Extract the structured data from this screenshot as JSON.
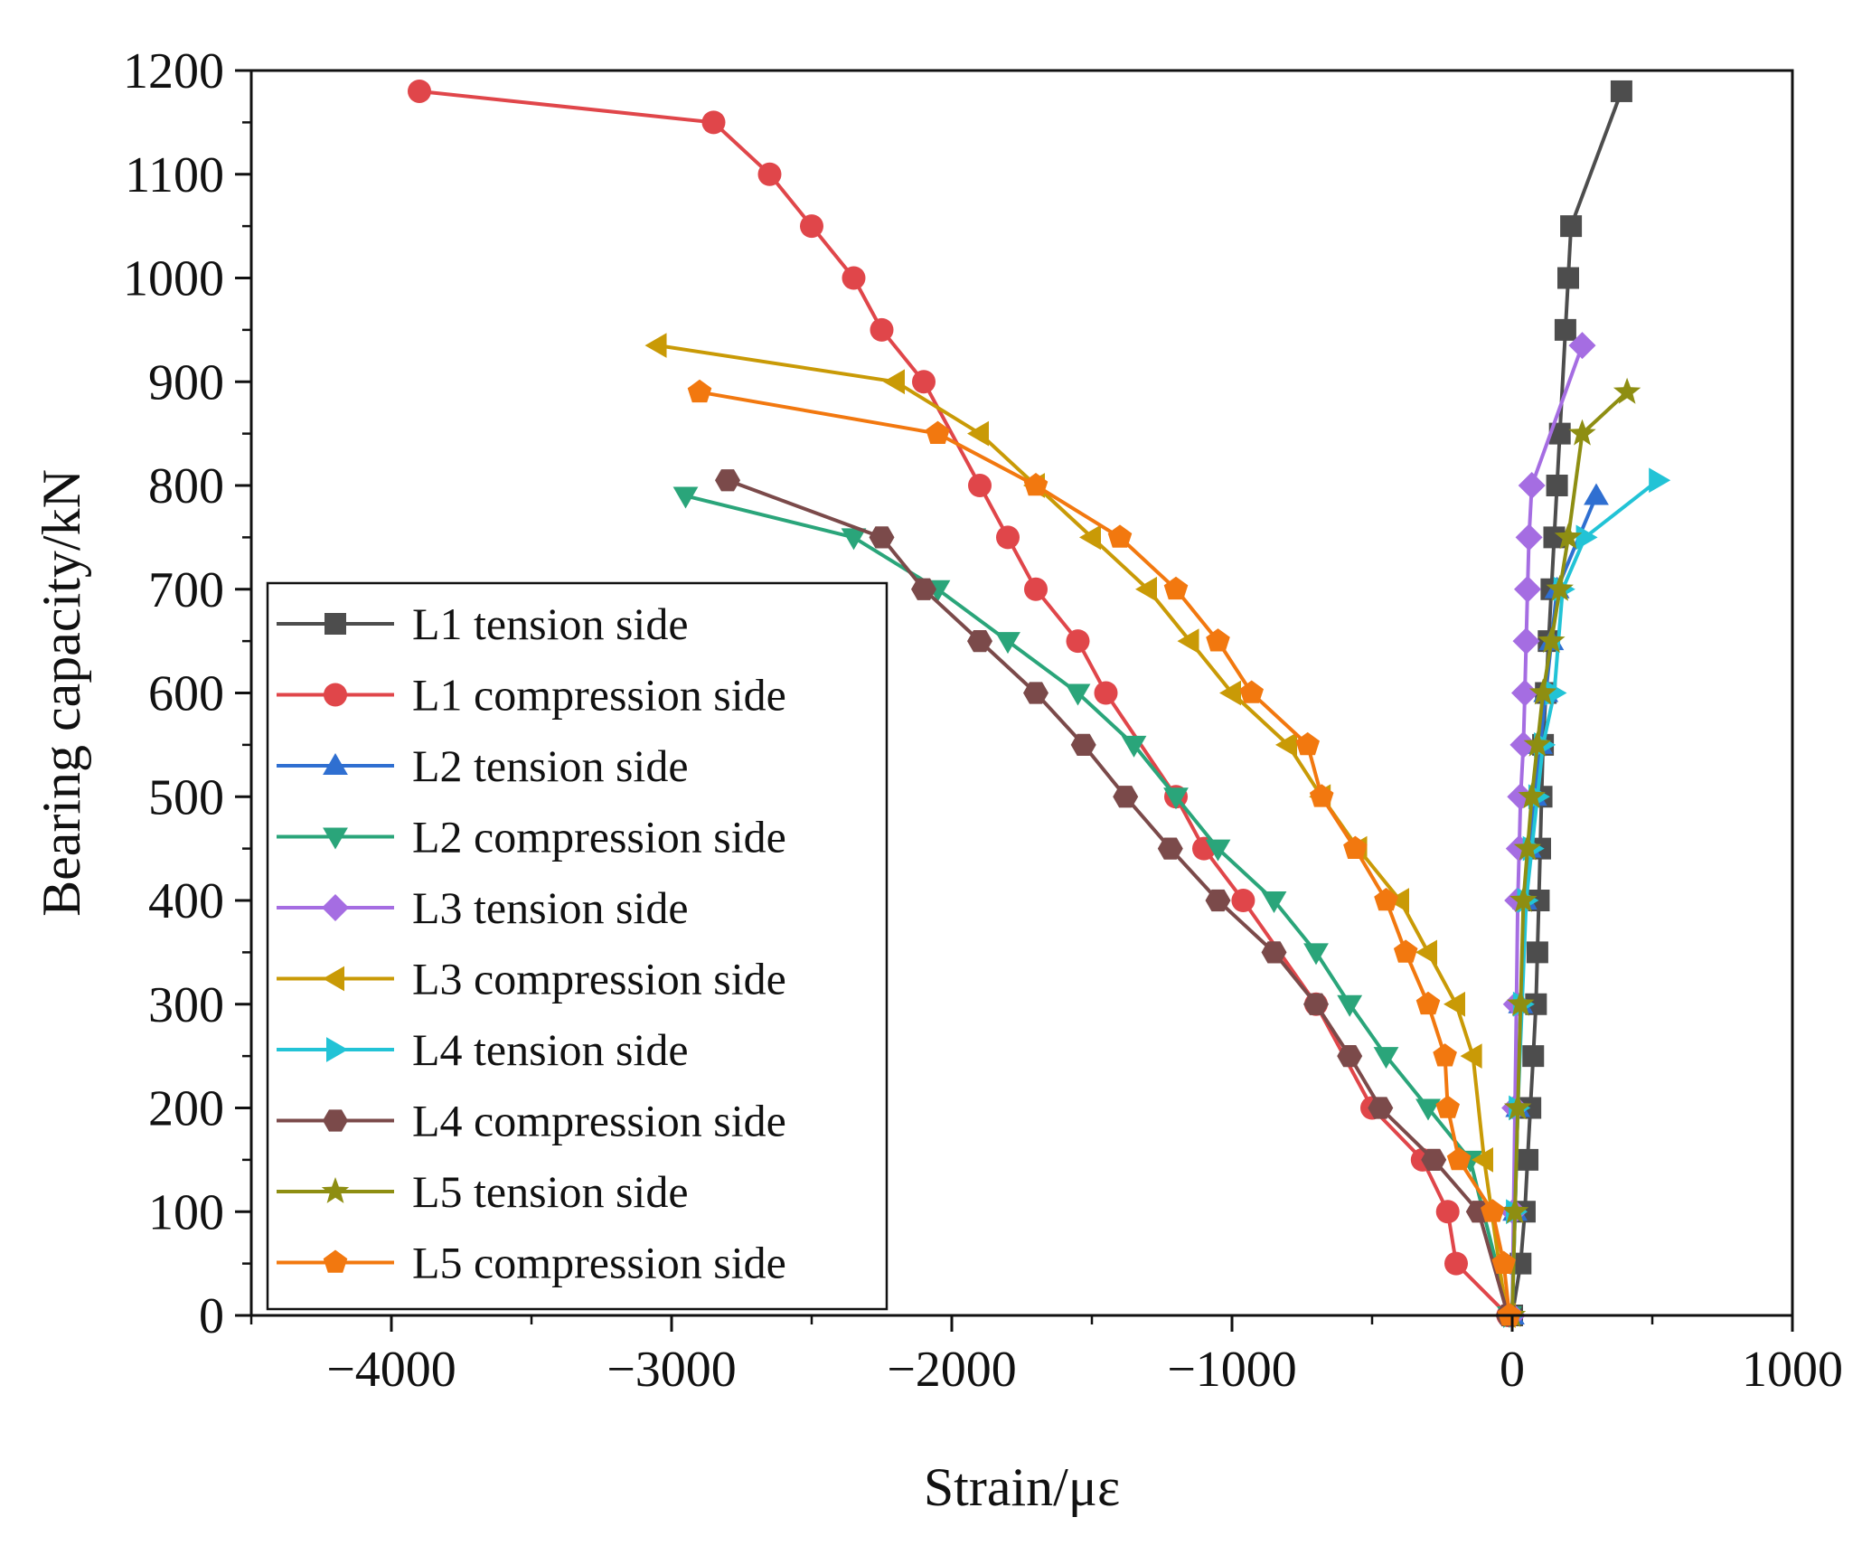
{
  "chart_data": {
    "type": "line",
    "title": "",
    "xlabel": "Strain/με",
    "ylabel": "Bearing capacity/kN",
    "xlim": [
      -4500,
      1000
    ],
    "ylim": [
      0,
      1200
    ],
    "xticks": [
      -4000,
      -3000,
      -2000,
      -1000,
      0,
      1000
    ],
    "xtick_labels": [
      "−4000",
      "−3000",
      "−2000",
      "−1000",
      "0",
      "1000"
    ],
    "yticks": [
      0,
      100,
      200,
      300,
      400,
      500,
      600,
      700,
      800,
      900,
      1000,
      1100,
      1200
    ],
    "ytick_labels": [
      "0",
      "100",
      "200",
      "300",
      "400",
      "500",
      "600",
      "700",
      "800",
      "900",
      "1000",
      "1100",
      "1200"
    ],
    "grid": false,
    "legend_position": "bottom-left",
    "series": [
      {
        "name": "L1 tension side",
        "color": "#4d4d4d",
        "marker": "square",
        "x": [
          0,
          30,
          45,
          55,
          65,
          75,
          85,
          90,
          95,
          100,
          105,
          110,
          120,
          130,
          140,
          150,
          160,
          170,
          190,
          200,
          210,
          390
        ],
        "y": [
          0,
          50,
          100,
          150,
          200,
          250,
          300,
          350,
          400,
          450,
          500,
          550,
          600,
          650,
          700,
          750,
          800,
          850,
          950,
          1000,
          1050,
          1180
        ]
      },
      {
        "name": "L1 compression side",
        "color": "#e0464a",
        "marker": "circle",
        "x": [
          -15,
          -200,
          -230,
          -320,
          -500,
          -700,
          -960,
          -1100,
          -1200,
          -1450,
          -1550,
          -1700,
          -1800,
          -1900,
          -2100,
          -2250,
          -2350,
          -2500,
          -2650,
          -2850,
          -3900
        ],
        "y": [
          0,
          50,
          100,
          150,
          200,
          300,
          400,
          450,
          500,
          600,
          650,
          700,
          750,
          800,
          900,
          950,
          1000,
          1050,
          1100,
          1150,
          1180
        ]
      },
      {
        "name": "L2 tension side",
        "color": "#2f6fd1",
        "marker": "triangle-up",
        "x": [
          0,
          10,
          20,
          30,
          45,
          60,
          80,
          100,
          120,
          140,
          160,
          300
        ],
        "y": [
          0,
          100,
          200,
          300,
          400,
          450,
          500,
          550,
          600,
          650,
          700,
          790
        ]
      },
      {
        "name": "L2 compression side",
        "color": "#2aa57a",
        "marker": "triangle-down",
        "x": [
          -10,
          -150,
          -300,
          -450,
          -580,
          -700,
          -850,
          -1050,
          -1200,
          -1350,
          -1550,
          -1800,
          -2050,
          -2350,
          -2950
        ],
        "y": [
          0,
          150,
          200,
          250,
          300,
          350,
          400,
          450,
          500,
          550,
          600,
          650,
          700,
          750,
          790
        ]
      },
      {
        "name": "L3 tension side",
        "color": "#a56de2",
        "marker": "diamond",
        "x": [
          0,
          5,
          10,
          15,
          20,
          25,
          30,
          40,
          45,
          50,
          55,
          60,
          70,
          250
        ],
        "y": [
          0,
          100,
          200,
          300,
          400,
          450,
          500,
          550,
          600,
          650,
          700,
          750,
          800,
          935
        ]
      },
      {
        "name": "L3 compression side",
        "color": "#c99a06",
        "marker": "triangle-left",
        "x": [
          -20,
          -100,
          -140,
          -200,
          -300,
          -400,
          -550,
          -680,
          -800,
          -1000,
          -1150,
          -1300,
          -1500,
          -1700,
          -1900,
          -2200,
          -3050
        ],
        "y": [
          0,
          150,
          250,
          300,
          350,
          400,
          450,
          500,
          550,
          600,
          650,
          700,
          750,
          800,
          850,
          900,
          935
        ]
      },
      {
        "name": "L4 tension side",
        "color": "#22c3d6",
        "marker": "triangle-right",
        "x": [
          0,
          10,
          20,
          35,
          50,
          70,
          90,
          110,
          150,
          180,
          260,
          520
        ],
        "y": [
          0,
          100,
          200,
          300,
          400,
          450,
          500,
          550,
          600,
          700,
          750,
          805
        ]
      },
      {
        "name": "L4 compression side",
        "color": "#7b4a4a",
        "marker": "hexagon",
        "x": [
          -15,
          -120,
          -280,
          -470,
          -580,
          -700,
          -850,
          -1050,
          -1220,
          -1380,
          -1530,
          -1700,
          -1900,
          -2100,
          -2250,
          -2800
        ],
        "y": [
          0,
          100,
          150,
          200,
          250,
          300,
          350,
          400,
          450,
          500,
          550,
          600,
          650,
          700,
          750,
          805
        ]
      },
      {
        "name": "L5 tension side",
        "color": "#8e8e12",
        "marker": "star",
        "x": [
          0,
          10,
          20,
          30,
          40,
          55,
          70,
          90,
          110,
          140,
          170,
          200,
          250,
          410
        ],
        "y": [
          0,
          100,
          200,
          300,
          400,
          450,
          500,
          550,
          600,
          650,
          700,
          750,
          850,
          890
        ]
      },
      {
        "name": "L5 compression side",
        "color": "#f2780f",
        "marker": "pentagon",
        "x": [
          -10,
          -30,
          -70,
          -190,
          -230,
          -240,
          -300,
          -380,
          -450,
          -560,
          -680,
          -730,
          -930,
          -1050,
          -1200,
          -1400,
          -1700,
          -2050,
          -2900
        ],
        "y": [
          0,
          50,
          100,
          150,
          200,
          250,
          300,
          350,
          400,
          450,
          500,
          550,
          600,
          650,
          700,
          750,
          800,
          850,
          890
        ]
      }
    ]
  }
}
